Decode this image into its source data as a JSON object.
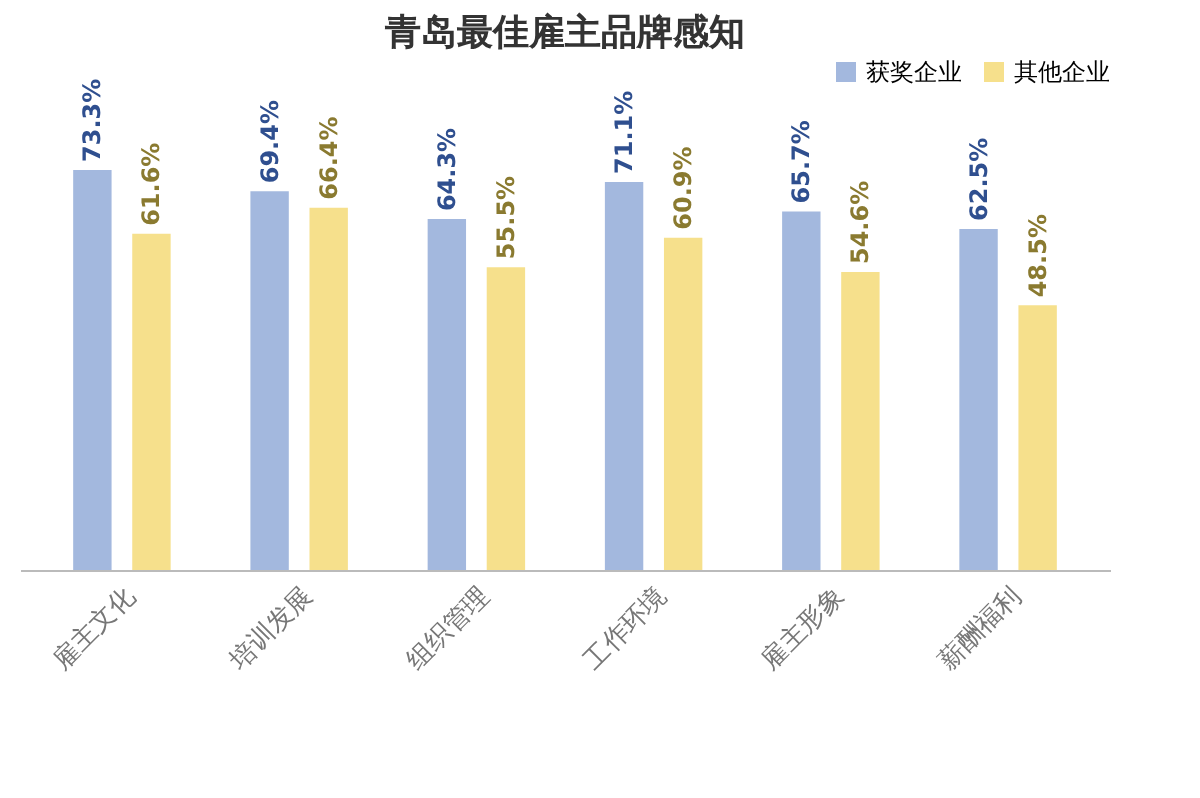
{
  "chart_data": {
    "type": "bar",
    "title": "青岛最佳雇主品牌感知",
    "categories": [
      "雇主文化",
      "培训发展",
      "组织管理",
      "工作环境",
      "雇主形象",
      "薪酬福利"
    ],
    "series": [
      {
        "name": "获奖企业",
        "color": "#a3b8de",
        "values": [
          73.3,
          69.4,
          64.3,
          71.1,
          65.7,
          62.5
        ],
        "value_labels": [
          "73.3%",
          "69.4%",
          "64.3%",
          "71.1%",
          "65.7%",
          "62.5%"
        ]
      },
      {
        "name": "其他企业",
        "color": "#f6e08c",
        "values": [
          61.6,
          66.4,
          55.5,
          60.9,
          54.6,
          48.5
        ],
        "value_labels": [
          "61.6%",
          "66.4%",
          "55.5%",
          "60.9%",
          "54.6%",
          "48.5%"
        ]
      }
    ],
    "tick_labels": "x",
    "grid": false,
    "legend": "top right"
  }
}
